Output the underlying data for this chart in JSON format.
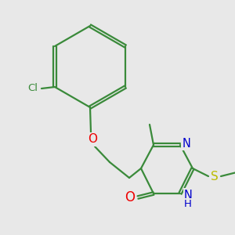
{
  "bg_color": "#e8e8e8",
  "bond_color": "#3a8a3a",
  "bond_width": 1.6,
  "atom_colors": {
    "Cl": "#3a8a3a",
    "O": "#ee0000",
    "N": "#0000cc",
    "S": "#bbbb00",
    "C": "#3a8a3a",
    "H": "#3a8a3a"
  },
  "font_size": 9.5
}
